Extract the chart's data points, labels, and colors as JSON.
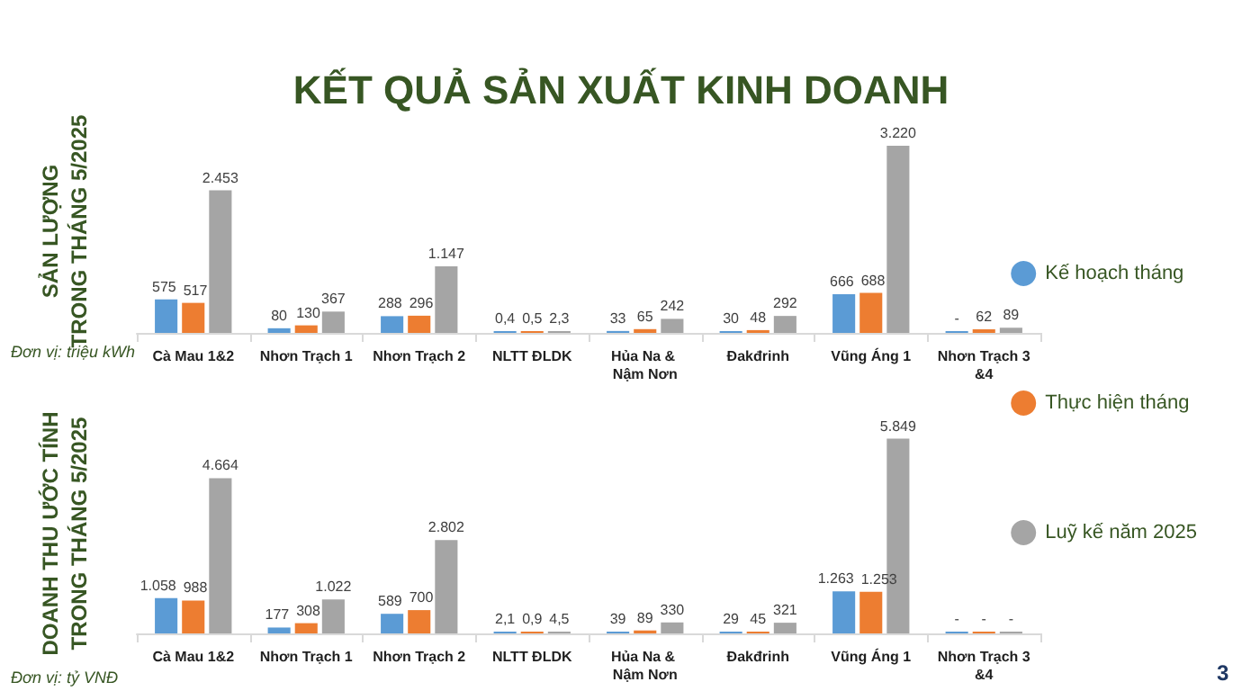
{
  "chart_data": [
    {
      "type": "bar",
      "title": "KẾT QUẢ SẢN XUẤT KINH DOANH",
      "ylabel": "SẢN LƯỢNG\nTRONG THÁNG 5/2025",
      "annotations": [
        "Đơn vị: triệu kWh"
      ],
      "categories": [
        "Cà Mau 1&2",
        "Nhơn Trạch 1",
        "Nhơn Trạch 2",
        "NLTT ĐLDK",
        "Hủa Na & Nậm Nơn",
        "Đakđrinh",
        "Vũng Áng 1",
        "Nhơn Trạch 3&4"
      ],
      "series": [
        {
          "name": "Kế hoạch tháng",
          "color": "#5b9bd5",
          "values": [
            575,
            80,
            288,
            0.4,
            33,
            30,
            666,
            0
          ],
          "value_labels": [
            "575",
            "80",
            "288",
            "0,4",
            "33",
            "30",
            "666",
            "-"
          ]
        },
        {
          "name": "Thực hiện tháng",
          "color": "#ed7d31",
          "values": [
            517,
            130,
            296,
            0.5,
            65,
            48,
            688,
            62
          ],
          "value_labels": [
            "517",
            "130",
            "296",
            "0,5",
            "65",
            "48",
            "688",
            "62"
          ]
        },
        {
          "name": "Luỹ kế năm 2025",
          "color": "#a5a5a5",
          "values": [
            2453,
            367,
            1147,
            2.3,
            242,
            292,
            3220,
            89
          ],
          "value_labels": [
            "2.453",
            "367",
            "1.147",
            "2,3",
            "242",
            "292",
            "3.220",
            "89"
          ]
        }
      ],
      "legend": "right",
      "grid": false,
      "tick_labels": "x"
    },
    {
      "type": "bar",
      "ylabel": "DOANH THU ƯỚC TÍNH\nTRONG THÁNG 5/2025",
      "annotations": [
        "Đơn vị: tỷ VNĐ",
        "3"
      ],
      "categories": [
        "Cà Mau 1&2",
        "Nhơn Trạch 1",
        "Nhơn Trạch 2",
        "NLTT ĐLDK",
        "Hủa Na & Nậm Nơn",
        "Đakđrinh",
        "Vũng Áng 1",
        "Nhơn Trạch 3&4"
      ],
      "series": [
        {
          "color": "#5b9bd5",
          "values": [
            1058,
            177,
            589,
            2.1,
            39,
            29,
            1263,
            0
          ],
          "value_labels": [
            "1.058",
            "177",
            "589",
            "2,1",
            "39",
            "29",
            "1.263",
            "-"
          ]
        },
        {
          "color": "#ed7d31",
          "values": [
            988,
            308,
            700,
            0.9,
            89,
            45,
            1253,
            0
          ],
          "value_labels": [
            "988",
            "308",
            "700",
            "0,9",
            "89",
            "45",
            "1.253",
            "-"
          ]
        },
        {
          "color": "#a5a5a5",
          "values": [
            4664,
            1022,
            2802,
            4.5,
            330,
            321,
            5849,
            0
          ],
          "value_labels": [
            "4.664",
            "1.022",
            "2.802",
            "4,5",
            "330",
            "321",
            "5.849",
            "-"
          ]
        }
      ],
      "legend": false,
      "grid": false,
      "tick_labels": "x"
    }
  ]
}
